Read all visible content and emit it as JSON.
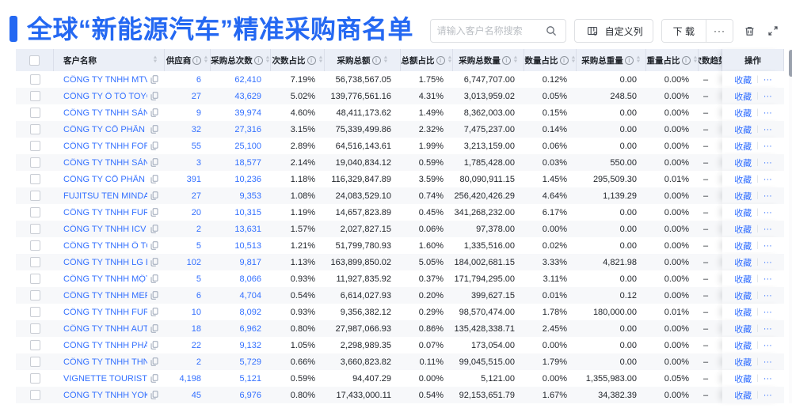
{
  "header": {
    "title": "全球“新能源汽车”精准采购商名单"
  },
  "toolbar": {
    "search_placeholder": "请输入客户名称搜索",
    "customize_label": "自定义列",
    "download_label": "下 载",
    "more_label": "···"
  },
  "icons": {
    "info": "i",
    "sort_asc": "▲",
    "sort_desc": "▼"
  },
  "table": {
    "favorite_label": "收藏",
    "action_separator": "|",
    "row_more_label": "···",
    "columns": [
      {
        "key": "name",
        "label": "客户名称",
        "info": false,
        "sort": true
      },
      {
        "key": "supplier",
        "label": "供应商",
        "info": true,
        "sort": true
      },
      {
        "key": "times",
        "label": "采购总次数",
        "info": true,
        "sort": true
      },
      {
        "key": "times_pct",
        "label": "次数占比",
        "info": true,
        "sort": true
      },
      {
        "key": "amount",
        "label": "采购总额",
        "info": true,
        "sort": true
      },
      {
        "key": "amount_pct",
        "label": "总额占比",
        "info": true,
        "sort": true
      },
      {
        "key": "qty",
        "label": "采购总数量",
        "info": true,
        "sort": true
      },
      {
        "key": "qty_pct",
        "label": "数量占比",
        "info": true,
        "sort": true
      },
      {
        "key": "weight",
        "label": "采购总重量",
        "info": true,
        "sort": true
      },
      {
        "key": "weight_pct",
        "label": "重量占比",
        "info": true,
        "sort": true
      },
      {
        "key": "trend",
        "label": "次数趋势",
        "info": false,
        "sort": false
      },
      {
        "key": "action",
        "label": "操作",
        "info": false,
        "sort": false
      }
    ],
    "rows": [
      {
        "name": "CÔNG TY TNHH MTV SẢN XUẤ...",
        "supplier": "6",
        "times": "62,410",
        "times_pct": "7.19%",
        "amount": "56,738,567.05",
        "amount_pct": "1.75%",
        "qty": "6,747,707.00",
        "qty_pct": "0.12%",
        "weight": "0.00",
        "weight_pct": "0.00%",
        "trend": "–"
      },
      {
        "name": "CÔNG TY Ô TÔ TOYOTA VIỆT ...",
        "supplier": "27",
        "times": "43,629",
        "times_pct": "5.02%",
        "amount": "139,776,561.16",
        "amount_pct": "4.31%",
        "qty": "3,013,959.02",
        "qty_pct": "0.05%",
        "weight": "248.50",
        "weight_pct": "0.00%",
        "trend": "–"
      },
      {
        "name": "CÔNG TY TNHH SẢN XUẤT VÀ ...",
        "supplier": "9",
        "times": "39,974",
        "times_pct": "4.60%",
        "amount": "48,411,173.62",
        "amount_pct": "1.49%",
        "qty": "8,362,003.00",
        "qty_pct": "0.15%",
        "weight": "0.00",
        "weight_pct": "0.00%",
        "trend": "–"
      },
      {
        "name": "CÔNG TY CỔ PHẦN SẢN XUẤT...",
        "supplier": "32",
        "times": "27,316",
        "times_pct": "3.15%",
        "amount": "75,339,499.86",
        "amount_pct": "2.32%",
        "qty": "7,475,237.00",
        "qty_pct": "0.14%",
        "weight": "0.00",
        "weight_pct": "0.00%",
        "trend": "–"
      },
      {
        "name": "CÔNG TY TNHH FORD VIỆT NAM",
        "supplier": "55",
        "times": "25,100",
        "times_pct": "2.89%",
        "amount": "64,516,143.61",
        "amount_pct": "1.99%",
        "qty": "3,213,159.00",
        "qty_pct": "0.06%",
        "weight": "0.00",
        "weight_pct": "0.00%",
        "trend": "–"
      },
      {
        "name": "CÔNG TY TNHH SẢN XUẤT VÀ ...",
        "supplier": "3",
        "times": "18,577",
        "times_pct": "2.14%",
        "amount": "19,040,834.12",
        "amount_pct": "0.59%",
        "qty": "1,785,428.00",
        "qty_pct": "0.03%",
        "weight": "550.00",
        "weight_pct": "0.00%",
        "trend": "–"
      },
      {
        "name": "CÔNG TY CỔ PHẦN SẢN XUẤT...",
        "supplier": "391",
        "times": "10,236",
        "times_pct": "1.18%",
        "amount": "116,329,847.89",
        "amount_pct": "3.59%",
        "qty": "80,090,911.15",
        "qty_pct": "1.45%",
        "weight": "295,509.30",
        "weight_pct": "0.01%",
        "trend": "–"
      },
      {
        "name": "FUJITSU TEN MINDA INDIA PVT...",
        "supplier": "27",
        "times": "9,353",
        "times_pct": "1.08%",
        "amount": "24,083,529.10",
        "amount_pct": "0.74%",
        "qty": "256,420,426.29",
        "qty_pct": "4.64%",
        "weight": "1,139.29",
        "weight_pct": "0.00%",
        "trend": "–"
      },
      {
        "name": "CÔNG TY TNHH FURUKAWA A...",
        "supplier": "20",
        "times": "10,315",
        "times_pct": "1.19%",
        "amount": "14,657,823.89",
        "amount_pct": "0.45%",
        "qty": "341,268,232.00",
        "qty_pct": "6.17%",
        "weight": "0.00",
        "weight_pct": "0.00%",
        "trend": "–"
      },
      {
        "name": "CÔNG TY TNHH ICV",
        "supplier": "2",
        "times": "13,631",
        "times_pct": "1.57%",
        "amount": "2,027,827.15",
        "amount_pct": "0.06%",
        "qty": "97,378.00",
        "qty_pct": "0.00%",
        "weight": "0.00",
        "weight_pct": "0.00%",
        "trend": "–"
      },
      {
        "name": "CÔNG TY TNHH Ô TÔ MITSUBI...",
        "supplier": "5",
        "times": "10,513",
        "times_pct": "1.21%",
        "amount": "51,799,780.93",
        "amount_pct": "1.60%",
        "qty": "1,335,516.00",
        "qty_pct": "0.02%",
        "weight": "0.00",
        "weight_pct": "0.00%",
        "trend": "–"
      },
      {
        "name": "CÔNG TY TNHH LG ELECTRON...",
        "supplier": "102",
        "times": "9,817",
        "times_pct": "1.13%",
        "amount": "163,899,850.02",
        "amount_pct": "5.05%",
        "qty": "184,002,681.15",
        "qty_pct": "3.33%",
        "weight": "4,821.98",
        "weight_pct": "0.00%",
        "trend": "–"
      },
      {
        "name": "CÔNG TY TNHH MỘT THÀNH V...",
        "supplier": "5",
        "times": "8,066",
        "times_pct": "0.93%",
        "amount": "11,927,835.92",
        "amount_pct": "0.37%",
        "qty": "171,794,295.00",
        "qty_pct": "3.11%",
        "weight": "0.00",
        "weight_pct": "0.00%",
        "trend": "–"
      },
      {
        "name": "CÔNG TY TNHH MERCEDES–B...",
        "supplier": "6",
        "times": "4,704",
        "times_pct": "0.54%",
        "amount": "6,614,027.93",
        "amount_pct": "0.20%",
        "qty": "399,627.15",
        "qty_pct": "0.01%",
        "weight": "0.12",
        "weight_pct": "0.00%",
        "trend": "–"
      },
      {
        "name": "CÔNG TY TNHH FURUKAWA A...",
        "supplier": "10",
        "times": "8,092",
        "times_pct": "0.93%",
        "amount": "9,356,382.12",
        "amount_pct": "0.29%",
        "qty": "98,570,474.00",
        "qty_pct": "1.78%",
        "weight": "180,000.00",
        "weight_pct": "0.01%",
        "trend": "–"
      },
      {
        "name": "CÔNG TY TNHH AUTEL VIỆT N...",
        "supplier": "18",
        "times": "6,962",
        "times_pct": "0.80%",
        "amount": "27,987,066.93",
        "amount_pct": "0.86%",
        "qty": "135,428,338.71",
        "qty_pct": "2.45%",
        "weight": "0.00",
        "weight_pct": "0.00%",
        "trend": "–"
      },
      {
        "name": "CÔNG TY TNHH PHÂN PHỐI T...",
        "supplier": "22",
        "times": "9,132",
        "times_pct": "1.05%",
        "amount": "2,298,989.35",
        "amount_pct": "0.07%",
        "qty": "173,054.00",
        "qty_pct": "0.00%",
        "weight": "0.00",
        "weight_pct": "0.00%",
        "trend": "–"
      },
      {
        "name": "CÔNG TY TNHH THN AUTOPAR...",
        "supplier": "2",
        "times": "5,729",
        "times_pct": "0.66%",
        "amount": "3,660,823.82",
        "amount_pct": "0.11%",
        "qty": "99,045,515.00",
        "qty_pct": "1.79%",
        "weight": "0.00",
        "weight_pct": "0.00%",
        "trend": "–"
      },
      {
        "name": "VIGNETTE TOURISTIQUE G UNI...",
        "supplier": "4,198",
        "times": "5,121",
        "times_pct": "0.59%",
        "amount": "94,407.29",
        "amount_pct": "0.00%",
        "qty": "5,121.00",
        "qty_pct": "0.00%",
        "weight": "1,355,983.00",
        "weight_pct": "0.05%",
        "trend": "–"
      },
      {
        "name": "CÔNG TY TNHH YOKOWO VIỆT...",
        "supplier": "45",
        "times": "6,976",
        "times_pct": "0.80%",
        "amount": "17,433,000.11",
        "amount_pct": "0.54%",
        "qty": "92,153,651.79",
        "qty_pct": "1.67%",
        "weight": "34,382.39",
        "weight_pct": "0.00%",
        "trend": "–"
      }
    ]
  }
}
